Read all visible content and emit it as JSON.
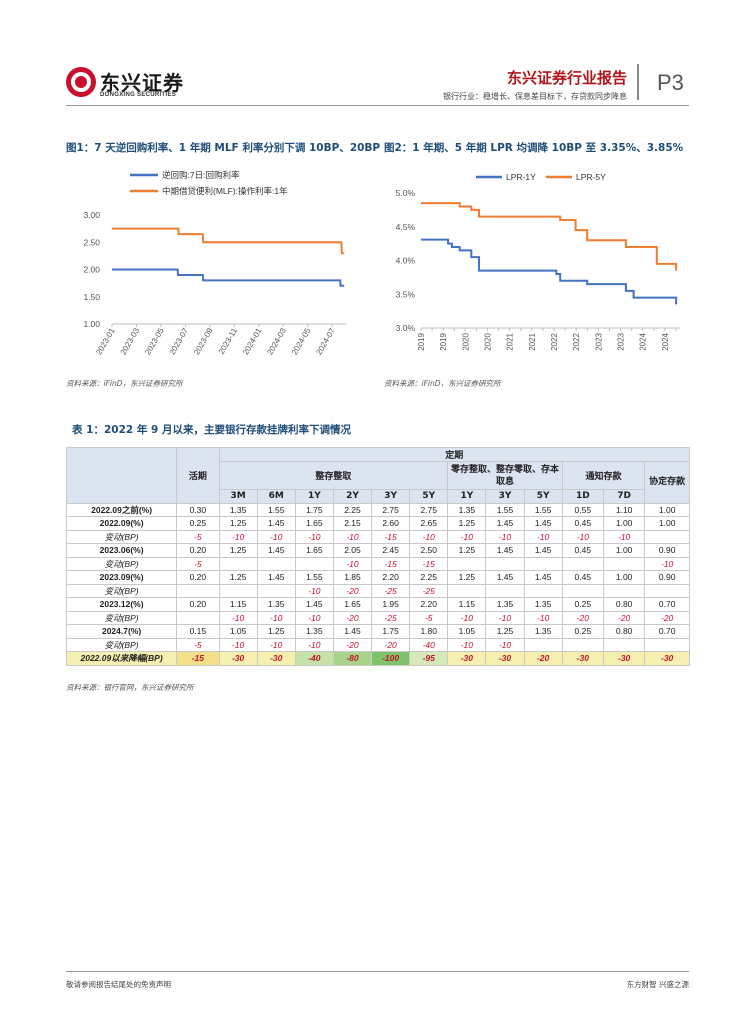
{
  "header": {
    "brand_cn": "东兴证券",
    "brand_en": "DONGXING SECURITIES",
    "report_title": "东兴证券行业报告",
    "report_subtitle": "银行行业：稳增长、保息差目标下，存贷款同步降息",
    "page_no": "P3"
  },
  "fig1": {
    "title": "图1：7 天逆回购利率、1 年期 MLF 利率分别下调 10BP、20BP",
    "source": "资料来源：iFinD，东兴证券研究所"
  },
  "fig2": {
    "title": "图2：1 年期、5 年期 LPR 均调降 10BP 至 3.35%、3.85%",
    "source": "资料来源：iFinD，东兴证券研究所"
  },
  "chart_data": [
    {
      "type": "line",
      "title": "图1：7 天逆回购利率、1 年期 MLF 利率分别下调 10BP、20BP",
      "xlabel": "",
      "ylabel": "",
      "ylim": [
        1.0,
        3.0
      ],
      "yticks": [
        "3.00",
        "2.50",
        "2.00",
        "1.50",
        "1.00"
      ],
      "xticks": [
        "2023-01",
        "2023-03",
        "2023-05",
        "2023-07",
        "2023-09",
        "2023-11",
        "2024-01",
        "2024-03",
        "2024-05",
        "2024-07"
      ],
      "legend_position": "top",
      "grid": false,
      "colors": {
        "reverse_repo": "#4472c4",
        "mlf": "#ed7d31"
      },
      "series": [
        {
          "name": "逆回购:7日:回购利率",
          "points": [
            [
              "2023-01-01",
              2.0
            ],
            [
              "2023-06-12",
              2.0
            ],
            [
              "2023-06-13",
              1.9
            ],
            [
              "2023-08-14",
              1.9
            ],
            [
              "2023-08-15",
              1.8
            ],
            [
              "2024-07-21",
              1.8
            ],
            [
              "2024-07-22",
              1.7
            ],
            [
              "2024-07-31",
              1.7
            ]
          ]
        },
        {
          "name": "中期借贷便利(MLF):操作利率:1年",
          "points": [
            [
              "2023-01-01",
              2.75
            ],
            [
              "2023-06-14",
              2.75
            ],
            [
              "2023-06-15",
              2.65
            ],
            [
              "2023-08-14",
              2.65
            ],
            [
              "2023-08-15",
              2.5
            ],
            [
              "2024-07-24",
              2.5
            ],
            [
              "2024-07-25",
              2.3
            ],
            [
              "2024-07-31",
              2.3
            ]
          ]
        }
      ]
    },
    {
      "type": "line",
      "title": "图2：1 年期、5 年期 LPR 均调降 10BP 至 3.35%、3.85%",
      "xlabel": "",
      "ylabel": "",
      "ylim": [
        3.0,
        5.0
      ],
      "yticks": [
        "5.0%",
        "4.5%",
        "4.0%",
        "3.5%",
        "3.0%"
      ],
      "xticks": [
        "2019",
        "2019",
        "2020",
        "2020",
        "2021",
        "2021",
        "2022",
        "2022",
        "2023",
        "2023",
        "2024",
        "2024"
      ],
      "legend_position": "top",
      "grid": false,
      "colors": {
        "lpr1y": "#4472c4",
        "lpr5y": "#ed7d31"
      },
      "series": [
        {
          "name": "LPR-1Y",
          "points": [
            [
              "2019-01",
              4.31
            ],
            [
              "2019-08",
              4.25
            ],
            [
              "2019-09",
              4.2
            ],
            [
              "2019-11",
              4.15
            ],
            [
              "2020-02",
              4.05
            ],
            [
              "2020-04",
              3.85
            ],
            [
              "2021-12",
              3.8
            ],
            [
              "2022-01",
              3.7
            ],
            [
              "2022-08",
              3.65
            ],
            [
              "2023-06",
              3.55
            ],
            [
              "2023-08",
              3.45
            ],
            [
              "2024-07",
              3.35
            ]
          ]
        },
        {
          "name": "LPR-5Y",
          "points": [
            [
              "2019-01",
              4.85
            ],
            [
              "2019-08",
              4.85
            ],
            [
              "2019-11",
              4.8
            ],
            [
              "2020-02",
              4.75
            ],
            [
              "2020-04",
              4.65
            ],
            [
              "2021-12",
              4.65
            ],
            [
              "2022-01",
              4.6
            ],
            [
              "2022-05",
              4.45
            ],
            [
              "2022-08",
              4.3
            ],
            [
              "2023-06",
              4.2
            ],
            [
              "2024-02",
              3.95
            ],
            [
              "2024-07",
              3.85
            ]
          ]
        }
      ]
    },
    {
      "type": "table",
      "title": "表 1：2022 年 9 月以来，主要银行存款挂牌利率下调情况"
    }
  ],
  "table": {
    "title": "表 1：2022 年 9 月以来，主要银行存款挂牌利率下调情况",
    "head": {
      "demand": "活期",
      "fixed": "定期",
      "lump": "整存整取",
      "partial": "零存整取、整存零取、存本取息",
      "notice": "通知存款",
      "agreement": "协定存款",
      "terms": [
        "3M",
        "6M",
        "1Y",
        "2Y",
        "3Y",
        "5Y",
        "1Y",
        "3Y",
        "5Y",
        "1D",
        "7D"
      ]
    },
    "rows": [
      {
        "label": "2022.09之前(%)",
        "cells": [
          "0.30",
          "1.35",
          "1.55",
          "1.75",
          "2.25",
          "2.75",
          "2.75",
          "1.35",
          "1.55",
          "1.55",
          "0.55",
          "1.10",
          "1.00"
        ]
      },
      {
        "label": "2022.09(%)",
        "cells": [
          "0.25",
          "1.25",
          "1.45",
          "1.65",
          "2.15",
          "2.60",
          "2.65",
          "1.25",
          "1.45",
          "1.45",
          "0.45",
          "1.00",
          "1.00"
        ]
      },
      {
        "label": "变动(BP)",
        "cells": [
          "-5",
          "-10",
          "-10",
          "-10",
          "-10",
          "-15",
          "-10",
          "-10",
          "-10",
          "-10",
          "-10",
          "-10",
          ""
        ]
      },
      {
        "label": "2023.06(%)",
        "cells": [
          "0.20",
          "1.25",
          "1.45",
          "1.65",
          "2.05",
          "2.45",
          "2.50",
          "1.25",
          "1.45",
          "1.45",
          "0.45",
          "1.00",
          "0.90"
        ]
      },
      {
        "label": "变动(BP)",
        "cells": [
          "-5",
          "",
          "",
          "",
          "-10",
          "-15",
          "-15",
          "",
          "",
          "",
          "",
          "",
          "-10"
        ]
      },
      {
        "label": "2023.09(%)",
        "cells": [
          "0.20",
          "1.25",
          "1.45",
          "1.55",
          "1.85",
          "2.20",
          "2.25",
          "1.25",
          "1.45",
          "1.45",
          "0.45",
          "1.00",
          "0.90"
        ]
      },
      {
        "label": "变动(BP)",
        "cells": [
          "",
          "",
          "",
          "-10",
          "-20",
          "-25",
          "-25",
          "",
          "",
          "",
          "",
          "",
          ""
        ]
      },
      {
        "label": "2023.12(%)",
        "cells": [
          "0.20",
          "1.15",
          "1.35",
          "1.45",
          "1.65",
          "1.95",
          "2.20",
          "1.15",
          "1.35",
          "1.35",
          "0.25",
          "0.80",
          "0.70"
        ]
      },
      {
        "label": "变动(BP)",
        "cells": [
          "",
          "-10",
          "-10",
          "-10",
          "-20",
          "-25",
          "-5",
          "-10",
          "-10",
          "-10",
          "-20",
          "-20",
          "-20"
        ]
      },
      {
        "label": "2024.7(%)",
        "cells": [
          "0.15",
          "1.05",
          "1.25",
          "1.35",
          "1.45",
          "1.75",
          "1.80",
          "1.05",
          "1.25",
          "1.35",
          "0.25",
          "0.80",
          "0.70"
        ]
      },
      {
        "label": "变动(BP)",
        "cells": [
          "-5",
          "-10",
          "-10",
          "-10",
          "-20",
          "-20",
          "-40",
          "-10",
          "-10",
          "",
          "",
          "",
          ""
        ]
      },
      {
        "label": "2022.09以来降幅(BP)",
        "cells": [
          "-15",
          "-30",
          "-30",
          "-40",
          "-80",
          "-100",
          "-95",
          "-30",
          "-30",
          "-20",
          "-30",
          "-30",
          "-30"
        ]
      }
    ],
    "source": "资料来源：银行官网，东兴证券研究所"
  },
  "footer": {
    "left": "敬请参阅报告结尾处的免责声明",
    "right": "东方财智  兴盛之源"
  }
}
